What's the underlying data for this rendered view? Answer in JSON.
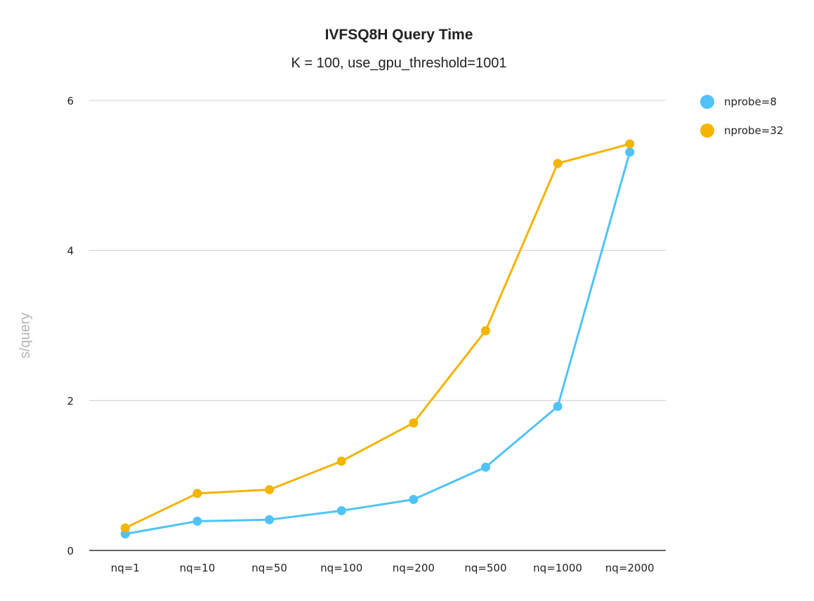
{
  "chart_data": {
    "type": "line",
    "title": "IVFSQ8H Query Time",
    "subtitle": "K = 100, use_gpu_threshold=1001",
    "xlabel": "",
    "ylabel": "s/query",
    "categories": [
      "nq=1",
      "nq=10",
      "nq=50",
      "nq=100",
      "nq=200",
      "nq=500",
      "nq=1000",
      "nq=2000"
    ],
    "ylim": [
      0,
      6
    ],
    "yticks": [
      "0",
      "2",
      "4",
      "6"
    ],
    "grid": true,
    "legend_position": "right",
    "series": [
      {
        "name": "nprobe=8",
        "color": "#4FC3F7",
        "values": [
          0.22,
          0.39,
          0.41,
          0.53,
          0.68,
          1.11,
          1.92,
          5.31
        ]
      },
      {
        "name": "nprobe=32",
        "color": "#F4B400",
        "values": [
          0.3,
          0.76,
          0.81,
          1.19,
          1.7,
          2.93,
          5.16,
          5.42
        ]
      }
    ]
  }
}
